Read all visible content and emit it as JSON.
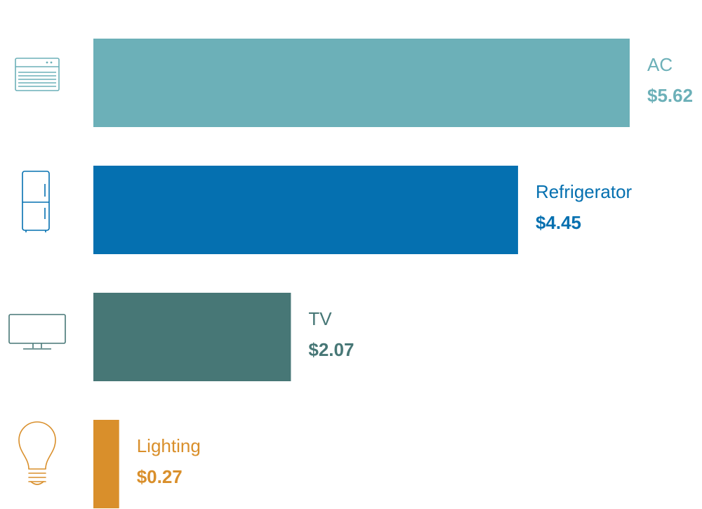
{
  "chart_data": {
    "type": "bar",
    "orientation": "horizontal",
    "categories": [
      "AC",
      "Refrigerator",
      "TV",
      "Lighting"
    ],
    "values": [
      5.62,
      4.45,
      2.07,
      0.27
    ],
    "value_labels": [
      "$5.62",
      "$4.45",
      "$2.07",
      "$0.27"
    ],
    "icons": [
      "air-conditioner-icon",
      "refrigerator-icon",
      "tv-icon",
      "light-bulb-icon"
    ],
    "colors": [
      "#6cb0b8",
      "#0570b0",
      "#477776",
      "#d98f2b"
    ],
    "xlim": [
      0,
      5.62
    ],
    "grid": false,
    "legend": "none"
  }
}
